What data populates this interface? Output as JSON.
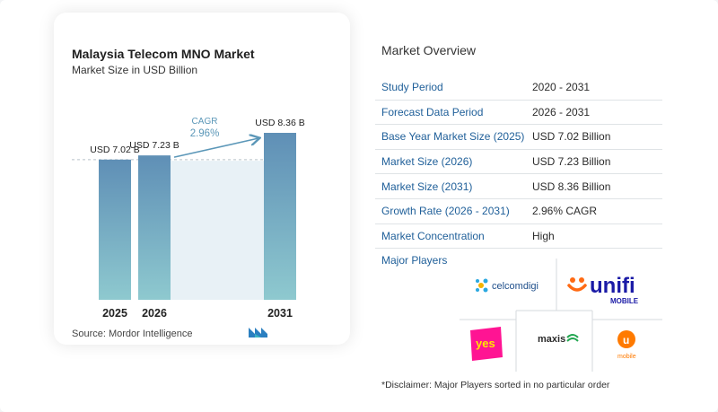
{
  "chart": {
    "title": "Malaysia Telecom MNO Market",
    "subtitle": "Market Size in USD Billion",
    "source": "Source:  Mordor Intelligence",
    "cagr_label": "CAGR",
    "cagr_value": "2.96%"
  },
  "chart_data": {
    "type": "bar",
    "title": "Malaysia Telecom MNO Market",
    "subtitle": "Market Size in USD Billion",
    "categories": [
      "2025",
      "2026",
      "2031"
    ],
    "values": [
      7.02,
      7.23,
      8.36
    ],
    "data_labels": [
      "USD 7.02 B",
      "USD 7.23 B",
      "USD 8.36 B"
    ],
    "ylim": [
      0,
      8.36
    ],
    "grid": false,
    "colors": {
      "bar_top": "#5f8fb6",
      "bar_bottom": "#8ec9cf",
      "band": "#e8f1f6",
      "arrow": "#5b97b8"
    }
  },
  "overview": {
    "title": "Market Overview",
    "rows": [
      {
        "label": "Study Period",
        "value": "2020 - 2031"
      },
      {
        "label": "Forecast Data Period",
        "value": "2026 - 2031"
      },
      {
        "label": "Base Year Market Size (2025)",
        "value": "USD 7.02 Billion"
      },
      {
        "label": "Market Size (2026)",
        "value": "USD 7.23 Billion"
      },
      {
        "label": "Market Size (2031)",
        "value": "USD 8.36 Billion"
      },
      {
        "label": "Growth Rate (2026 - 2031)",
        "value": "2.96% CAGR"
      },
      {
        "label": "Market Concentration",
        "value": "High"
      }
    ]
  },
  "players": {
    "title": "Major Players",
    "logos": [
      "celcomdigi",
      "unifi",
      "MOBILE",
      "yes",
      "maxis",
      "mobile"
    ]
  },
  "disclaimer": "*Disclaimer: Major Players sorted in no particular order"
}
